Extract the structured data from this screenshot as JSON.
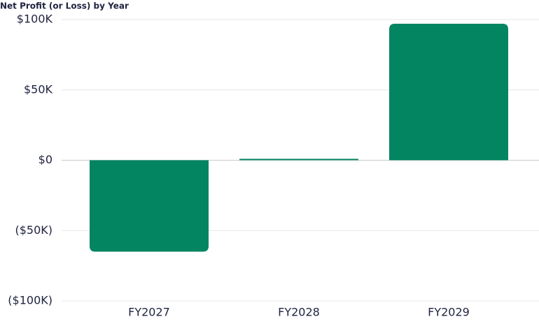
{
  "chart_data": {
    "type": "bar",
    "title": "Net Profit (or Loss) by Year",
    "categories": [
      "FY2027",
      "FY2028",
      "FY2029"
    ],
    "values": [
      -65000,
      1000,
      97000
    ],
    "color": "#038561",
    "ylim": [
      -100000,
      100000
    ],
    "yticks": [
      {
        "value": -100000,
        "label": "($100K)"
      },
      {
        "value": -50000,
        "label": "($50K)"
      },
      {
        "value": 0,
        "label": "$0"
      },
      {
        "value": 50000,
        "label": "$50K"
      },
      {
        "value": 100000,
        "label": "$100K"
      }
    ],
    "grid": true
  }
}
